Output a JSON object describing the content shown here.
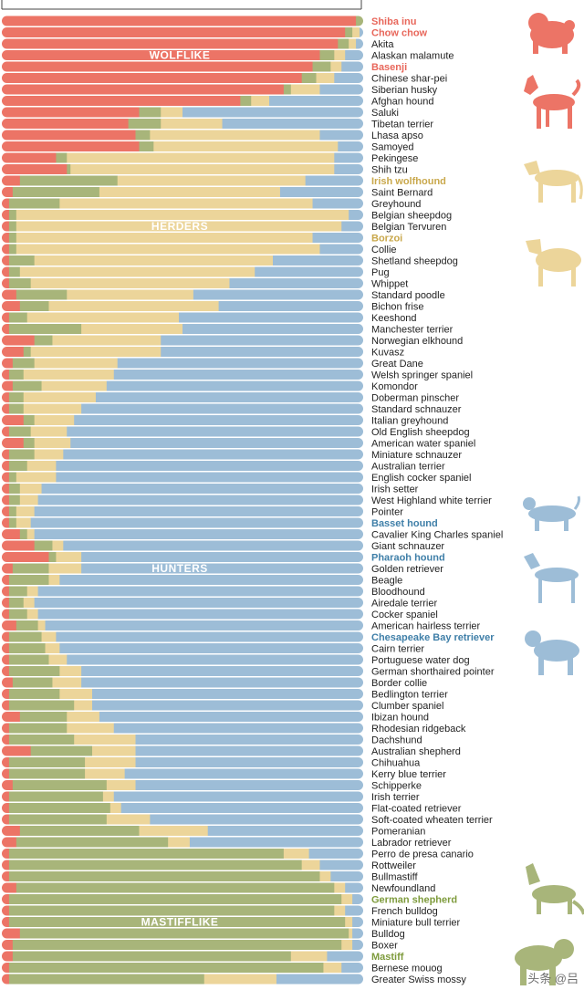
{
  "chart_data": {
    "type": "bar",
    "orientation": "horizontal-stacked",
    "components": [
      {
        "name": "wolflike",
        "color": "#ec7466"
      },
      {
        "name": "mastifflike",
        "color": "#a8b57a"
      },
      {
        "name": "herders",
        "color": "#ecd59a"
      },
      {
        "name": "hunters",
        "color": "#9dbdd7"
      }
    ],
    "group_labels": [
      "WOLFLIKE",
      "HERDERS",
      "HUNTERS",
      "MASTIFFLIKE"
    ],
    "group_label_rows": [
      3,
      18,
      48,
      79
    ],
    "breeds": [
      {
        "name": "Shiba inu",
        "hl": "wolf",
        "v": [
          98,
          2,
          0,
          0
        ]
      },
      {
        "name": "Chow chow",
        "hl": "wolf",
        "v": [
          95,
          2,
          2,
          1
        ]
      },
      {
        "name": "Akita",
        "hl": "",
        "v": [
          93,
          3,
          2,
          2
        ]
      },
      {
        "name": "Alaskan malamute",
        "hl": "",
        "v": [
          88,
          4,
          3,
          5
        ]
      },
      {
        "name": "Basenji",
        "hl": "wolf",
        "v": [
          86,
          5,
          3,
          6
        ]
      },
      {
        "name": "Chinese shar-pei",
        "hl": "",
        "v": [
          83,
          4,
          5,
          8
        ]
      },
      {
        "name": "Siberian husky",
        "hl": "",
        "v": [
          78,
          2,
          8,
          12
        ]
      },
      {
        "name": "Afghan hound",
        "hl": "",
        "v": [
          66,
          3,
          5,
          26
        ]
      },
      {
        "name": "Saluki",
        "hl": "",
        "v": [
          38,
          6,
          6,
          50
        ]
      },
      {
        "name": "Tibetan terrier",
        "hl": "",
        "v": [
          35,
          9,
          17,
          39
        ]
      },
      {
        "name": "Lhasa apso",
        "hl": "",
        "v": [
          37,
          4,
          47,
          12
        ]
      },
      {
        "name": "Samoyed",
        "hl": "",
        "v": [
          38,
          4,
          51,
          7
        ]
      },
      {
        "name": "Pekingese",
        "hl": "",
        "v": [
          15,
          3,
          74,
          8
        ]
      },
      {
        "name": "Shih tzu",
        "hl": "",
        "v": [
          18,
          1,
          73,
          8
        ]
      },
      {
        "name": "Irish wolfhound",
        "hl": "herd",
        "v": [
          5,
          27,
          52,
          16
        ]
      },
      {
        "name": "Saint Bernard",
        "hl": "",
        "v": [
          3,
          24,
          50,
          23
        ]
      },
      {
        "name": "Greyhound",
        "hl": "",
        "v": [
          2,
          14,
          70,
          14
        ]
      },
      {
        "name": "Belgian sheepdog",
        "hl": "",
        "v": [
          2,
          2,
          92,
          4
        ]
      },
      {
        "name": "Belgian Tervuren",
        "hl": "",
        "v": [
          2,
          2,
          90,
          6
        ]
      },
      {
        "name": "Borzoi",
        "hl": "herd",
        "v": [
          2,
          2,
          82,
          14
        ]
      },
      {
        "name": "Collie",
        "hl": "",
        "v": [
          2,
          2,
          84,
          12
        ]
      },
      {
        "name": "Shetland sheepdog",
        "hl": "",
        "v": [
          2,
          7,
          66,
          25
        ]
      },
      {
        "name": "Pug",
        "hl": "",
        "v": [
          2,
          3,
          65,
          30
        ]
      },
      {
        "name": "Whippet",
        "hl": "",
        "v": [
          2,
          6,
          55,
          37
        ]
      },
      {
        "name": "Standard poodle",
        "hl": "",
        "v": [
          4,
          14,
          35,
          47
        ]
      },
      {
        "name": "Bichon frise",
        "hl": "",
        "v": [
          5,
          8,
          47,
          40
        ]
      },
      {
        "name": "Keeshond",
        "hl": "",
        "v": [
          2,
          5,
          42,
          51
        ]
      },
      {
        "name": "Manchester terrier",
        "hl": "",
        "v": [
          2,
          20,
          28,
          50
        ]
      },
      {
        "name": "Norwegian elkhound",
        "hl": "",
        "v": [
          9,
          5,
          30,
          56
        ]
      },
      {
        "name": "Kuvasz",
        "hl": "",
        "v": [
          6,
          2,
          36,
          56
        ]
      },
      {
        "name": "Great Dane",
        "hl": "",
        "v": [
          3,
          6,
          23,
          68
        ]
      },
      {
        "name": "Welsh springer spaniel",
        "hl": "",
        "v": [
          2,
          4,
          25,
          69
        ]
      },
      {
        "name": "Komondor",
        "hl": "",
        "v": [
          3,
          8,
          18,
          71
        ]
      },
      {
        "name": "Doberman pinscher",
        "hl": "",
        "v": [
          2,
          4,
          20,
          74
        ]
      },
      {
        "name": "Standard schnauzer",
        "hl": "",
        "v": [
          2,
          4,
          16,
          78
        ]
      },
      {
        "name": "Italian greyhound",
        "hl": "",
        "v": [
          6,
          3,
          11,
          80
        ]
      },
      {
        "name": "Old English sheepdog",
        "hl": "",
        "v": [
          2,
          6,
          10,
          82
        ]
      },
      {
        "name": "American water spaniel",
        "hl": "",
        "v": [
          6,
          3,
          10,
          81
        ]
      },
      {
        "name": "Miniature schnauzer",
        "hl": "",
        "v": [
          2,
          7,
          8,
          83
        ]
      },
      {
        "name": "Australian terrier",
        "hl": "",
        "v": [
          2,
          5,
          8,
          85
        ]
      },
      {
        "name": "English cocker spaniel",
        "hl": "",
        "v": [
          2,
          2,
          11,
          85
        ]
      },
      {
        "name": "Irish setter",
        "hl": "",
        "v": [
          2,
          3,
          6,
          89
        ]
      },
      {
        "name": "West Highland white terrier",
        "hl": "",
        "v": [
          2,
          3,
          5,
          90
        ]
      },
      {
        "name": "Pointer",
        "hl": "",
        "v": [
          2,
          2,
          5,
          91
        ]
      },
      {
        "name": "Basset hound",
        "hl": "hunt",
        "v": [
          2,
          2,
          4,
          92
        ]
      },
      {
        "name": "Cavalier King Charles spaniel",
        "hl": "",
        "v": [
          5,
          2,
          2,
          91
        ]
      },
      {
        "name": "Giant schnauzer",
        "hl": "",
        "v": [
          9,
          5,
          3,
          83
        ]
      },
      {
        "name": "Pharaoh hound",
        "hl": "hunt",
        "v": [
          13,
          2,
          7,
          78
        ]
      },
      {
        "name": "Golden retriever",
        "hl": "",
        "v": [
          3,
          10,
          9,
          78
        ]
      },
      {
        "name": "Beagle",
        "hl": "",
        "v": [
          2,
          11,
          3,
          84
        ]
      },
      {
        "name": "Bloodhound",
        "hl": "",
        "v": [
          2,
          5,
          3,
          90
        ]
      },
      {
        "name": "Airedale terrier",
        "hl": "",
        "v": [
          2,
          4,
          3,
          91
        ]
      },
      {
        "name": "Cocker spaniel",
        "hl": "",
        "v": [
          2,
          5,
          3,
          90
        ]
      },
      {
        "name": "American hairless terrier",
        "hl": "",
        "v": [
          4,
          6,
          2,
          88
        ]
      },
      {
        "name": "Chesapeake Bay retriever",
        "hl": "hunt",
        "v": [
          2,
          9,
          4,
          85
        ]
      },
      {
        "name": "Cairn terrier",
        "hl": "",
        "v": [
          2,
          10,
          4,
          84
        ]
      },
      {
        "name": "Portuguese water dog",
        "hl": "",
        "v": [
          2,
          11,
          5,
          82
        ]
      },
      {
        "name": "German shorthaired pointer",
        "hl": "",
        "v": [
          2,
          14,
          6,
          78
        ]
      },
      {
        "name": "Border collie",
        "hl": "",
        "v": [
          3,
          11,
          8,
          78
        ]
      },
      {
        "name": "Bedlington terrier",
        "hl": "",
        "v": [
          2,
          14,
          9,
          75
        ]
      },
      {
        "name": "Clumber spaniel",
        "hl": "",
        "v": [
          2,
          18,
          5,
          75
        ]
      },
      {
        "name": "Ibizan hound",
        "hl": "",
        "v": [
          5,
          13,
          9,
          73
        ]
      },
      {
        "name": "Rhodesian ridgeback",
        "hl": "",
        "v": [
          2,
          16,
          13,
          69
        ]
      },
      {
        "name": "Dachshund",
        "hl": "",
        "v": [
          2,
          18,
          17,
          63
        ]
      },
      {
        "name": "Australian shepherd",
        "hl": "",
        "v": [
          8,
          17,
          12,
          63
        ]
      },
      {
        "name": "Chihuahua",
        "hl": "",
        "v": [
          2,
          21,
          14,
          63
        ]
      },
      {
        "name": "Kerry blue terrier",
        "hl": "",
        "v": [
          2,
          21,
          11,
          66
        ]
      },
      {
        "name": "Schipperke",
        "hl": "",
        "v": [
          3,
          26,
          8,
          63
        ]
      },
      {
        "name": "Irish terrier",
        "hl": "",
        "v": [
          2,
          26,
          3,
          69
        ]
      },
      {
        "name": "Flat-coated retriever",
        "hl": "",
        "v": [
          2,
          28,
          3,
          67
        ]
      },
      {
        "name": "Soft-coated wheaten terrier",
        "hl": "",
        "v": [
          2,
          27,
          12,
          59
        ]
      },
      {
        "name": "Pomeranian",
        "hl": "",
        "v": [
          5,
          33,
          19,
          43
        ]
      },
      {
        "name": "Labrador retriever",
        "hl": "",
        "v": [
          4,
          42,
          6,
          48
        ]
      },
      {
        "name": "Perro de presa canario",
        "hl": "",
        "v": [
          2,
          76,
          7,
          15
        ]
      },
      {
        "name": "Rottweiler",
        "hl": "",
        "v": [
          2,
          81,
          5,
          12
        ]
      },
      {
        "name": "Bullmastiff",
        "hl": "",
        "v": [
          2,
          86,
          3,
          9
        ]
      },
      {
        "name": "Newfoundland",
        "hl": "",
        "v": [
          4,
          88,
          3,
          5
        ]
      },
      {
        "name": "German shepherd",
        "hl": "mast",
        "v": [
          2,
          92,
          3,
          3
        ]
      },
      {
        "name": "French bulldog",
        "hl": "",
        "v": [
          2,
          90,
          3,
          5
        ]
      },
      {
        "name": "Miniature bull terrier",
        "hl": "",
        "v": [
          2,
          93,
          2,
          3
        ]
      },
      {
        "name": "Bulldog",
        "hl": "",
        "v": [
          5,
          91,
          1,
          3
        ]
      },
      {
        "name": "Boxer",
        "hl": "",
        "v": [
          3,
          91,
          3,
          3
        ]
      },
      {
        "name": "Mastiff",
        "hl": "mast",
        "v": [
          3,
          77,
          10,
          10
        ]
      },
      {
        "name": "Bernese mouog",
        "hl": "",
        "v": [
          2,
          87,
          5,
          6
        ]
      },
      {
        "name": "Greater Swiss mossy",
        "hl": "",
        "v": [
          2,
          54,
          20,
          24
        ]
      }
    ],
    "xlim": [
      0,
      100
    ]
  },
  "watermark": "头条 @吕"
}
